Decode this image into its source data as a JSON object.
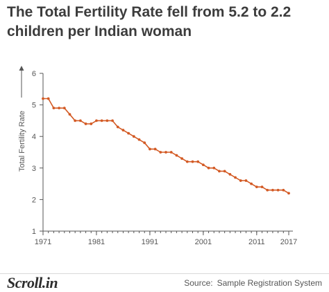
{
  "title": "The Total Fertility Rate fell from 5.2 to 2.2 children per Indian woman",
  "brand": "Scroll.in",
  "source": {
    "label": "Source:",
    "text": "Sample Registration System"
  },
  "colors": {
    "line": "#d35a24",
    "axis": "#555555",
    "text": "#3c3c3c"
  },
  "chart_data": {
    "type": "line",
    "title": "The Total Fertility Rate fell from 5.2 to 2.2 children per Indian woman",
    "xlabel": "",
    "ylabel": "Total Fertility Rate",
    "xlim": [
      1971,
      2017
    ],
    "ylim": [
      1,
      6
    ],
    "x_ticks": [
      "1971",
      "1981",
      "1991",
      "2001",
      "2011",
      "2017"
    ],
    "y_ticks": [
      "6",
      "5",
      "4",
      "3",
      "2",
      "1"
    ],
    "grid": false,
    "x": [
      1971,
      1972,
      1973,
      1974,
      1975,
      1976,
      1977,
      1978,
      1979,
      1980,
      1981,
      1982,
      1983,
      1984,
      1985,
      1986,
      1987,
      1988,
      1989,
      1990,
      1991,
      1992,
      1993,
      1994,
      1995,
      1996,
      1997,
      1998,
      1999,
      2000,
      2001,
      2002,
      2003,
      2004,
      2005,
      2006,
      2007,
      2008,
      2009,
      2010,
      2011,
      2012,
      2013,
      2014,
      2015,
      2016,
      2017
    ],
    "series": [
      {
        "values": [
          5.2,
          5.2,
          4.9,
          4.9,
          4.9,
          4.7,
          4.5,
          4.5,
          4.4,
          4.4,
          4.5,
          4.5,
          4.5,
          4.5,
          4.3,
          4.2,
          4.1,
          4.0,
          3.9,
          3.8,
          3.6,
          3.6,
          3.5,
          3.5,
          3.5,
          3.4,
          3.3,
          3.2,
          3.2,
          3.2,
          3.1,
          3.0,
          3.0,
          2.9,
          2.9,
          2.8,
          2.7,
          2.6,
          2.6,
          2.5,
          2.4,
          2.4,
          2.3,
          2.3,
          2.3,
          2.3,
          2.2
        ]
      }
    ]
  }
}
